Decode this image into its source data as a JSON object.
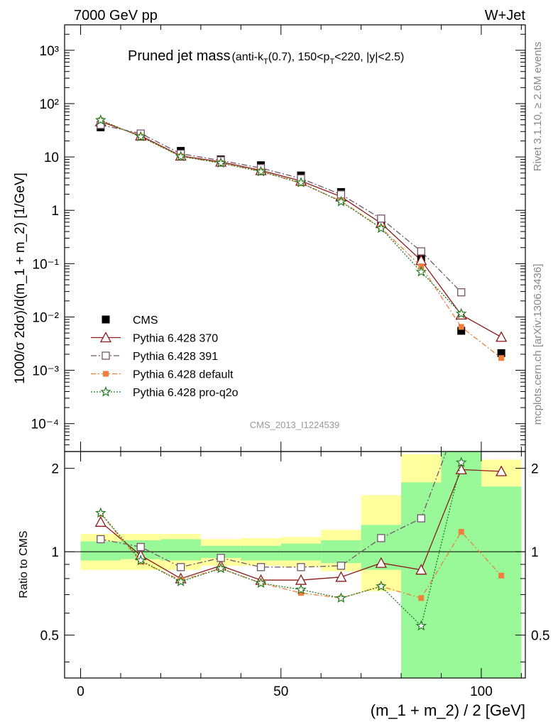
{
  "header": {
    "energy": "7000 GeV pp",
    "process": "W+Jet"
  },
  "title": {
    "main": "Pruned jet mass",
    "cuts": "(anti-k",
    "cuts_sub": "T",
    "cuts2": "(0.7), 150<p",
    "cuts2_sub": "T",
    "cuts3": "<220, |y|<2.5)"
  },
  "side_labels": {
    "rivet": "Rivet 3.1.10, ≥ 2.6M events",
    "mcplots": "mcplots.cern.ch [arXiv:1306.3436]"
  },
  "watermark": "CMS_2013_I1224539",
  "chart_data": {
    "type": "line",
    "x": [
      5,
      15,
      25,
      35,
      45,
      55,
      65,
      75,
      85,
      95,
      105
    ],
    "bin_edges": [
      0,
      10,
      20,
      30,
      40,
      50,
      60,
      70,
      80,
      90,
      100,
      110
    ],
    "xlabel": "(m_1 + m_2) / 2 [GeV]",
    "ylabel": "1000/σ 2dσ)/d(m_1 + m_2) [1/GeV]",
    "ratio_ylabel": "Ratio to CMS",
    "xlim": [
      -4,
      111
    ],
    "ylim": [
      3e-05,
      3000
    ],
    "ratio_ylim": [
      0.35,
      2.3
    ],
    "yscale": "log",
    "legend_position": "bottom-left",
    "main_tick_labels": {
      "x": [
        "0",
        "50",
        "100"
      ],
      "y": [
        "10⁻⁴",
        "10⁻³",
        "10⁻²",
        "10⁻¹",
        "1",
        "10",
        "10²",
        "10³"
      ]
    },
    "ratio_tick_labels": [
      "0.5",
      "1",
      "2"
    ],
    "data": {
      "name": "CMS",
      "color": "#000000",
      "values": [
        36,
        26,
        13,
        9,
        7,
        4.5,
        2.2,
        0.62,
        0.13,
        0.0055,
        0.0021
      ],
      "band_inner": [
        [
          0.93,
          1.09
        ],
        [
          0.94,
          1.1
        ],
        [
          0.93,
          1.11
        ],
        [
          0.95,
          1.05
        ],
        [
          0.93,
          1.05
        ],
        [
          0.93,
          1.07
        ],
        [
          0.91,
          1.1
        ],
        [
          0.86,
          1.25
        ],
        [
          0.35,
          1.78
        ],
        [
          0.35,
          2.3
        ],
        [
          0.35,
          1.72
        ]
      ],
      "band_outer": [
        [
          0.86,
          1.16
        ],
        [
          0.86,
          1.16
        ],
        [
          0.86,
          1.16
        ],
        [
          0.89,
          1.11
        ],
        [
          0.89,
          1.12
        ],
        [
          0.88,
          1.13
        ],
        [
          0.85,
          1.2
        ],
        [
          0.72,
          1.6
        ],
        [
          0.43,
          2.25
        ],
        [
          0.35,
          2.3
        ],
        [
          0.35,
          2.15
        ]
      ]
    },
    "series": [
      {
        "name": "Pythia 6.428 370",
        "color": "#8b1a1a",
        "marker": "triangle",
        "dash": "",
        "values": [
          46,
          25,
          10.5,
          8.1,
          5.6,
          3.55,
          1.8,
          0.57,
          0.115,
          0.011,
          0.0042
        ],
        "ratio": [
          1.28,
          0.97,
          0.8,
          0.89,
          0.79,
          0.79,
          0.81,
          0.91,
          0.86,
          1.98,
          1.95
        ]
      },
      {
        "name": "Pythia 6.428 391",
        "color": "#74546a",
        "marker": "open-square",
        "dash": "8,3,2,3",
        "values": [
          40,
          27.5,
          11.5,
          8.6,
          6.2,
          3.95,
          1.98,
          0.7,
          0.17,
          0.029,
          null
        ],
        "ratio": [
          1.11,
          1.04,
          0.88,
          0.95,
          0.88,
          0.88,
          0.89,
          1.12,
          1.32,
          5.5,
          null
        ]
      },
      {
        "name": "Pythia 6.428 default",
        "color": "#f07f3c",
        "marker": "filled-square",
        "dash": "7,3,2,3",
        "values": [
          49,
          24,
          10.3,
          7.7,
          5.4,
          3.2,
          1.5,
          0.47,
          0.089,
          0.0065,
          0.0017
        ],
        "ratio": [
          1.37,
          0.92,
          0.79,
          0.87,
          0.77,
          0.71,
          0.68,
          0.75,
          0.68,
          1.18,
          0.82
        ]
      },
      {
        "name": "Pythia 6.428 pro-q2o",
        "color": "#1f7a1f",
        "marker": "star",
        "dash": "2,2",
        "values": [
          49,
          24,
          10.2,
          7.7,
          5.3,
          3.3,
          1.45,
          0.46,
          0.07,
          0.0115,
          null
        ],
        "ratio": [
          1.38,
          0.93,
          0.78,
          0.87,
          0.77,
          0.73,
          0.68,
          0.75,
          0.54,
          2.1,
          null
        ]
      }
    ]
  }
}
